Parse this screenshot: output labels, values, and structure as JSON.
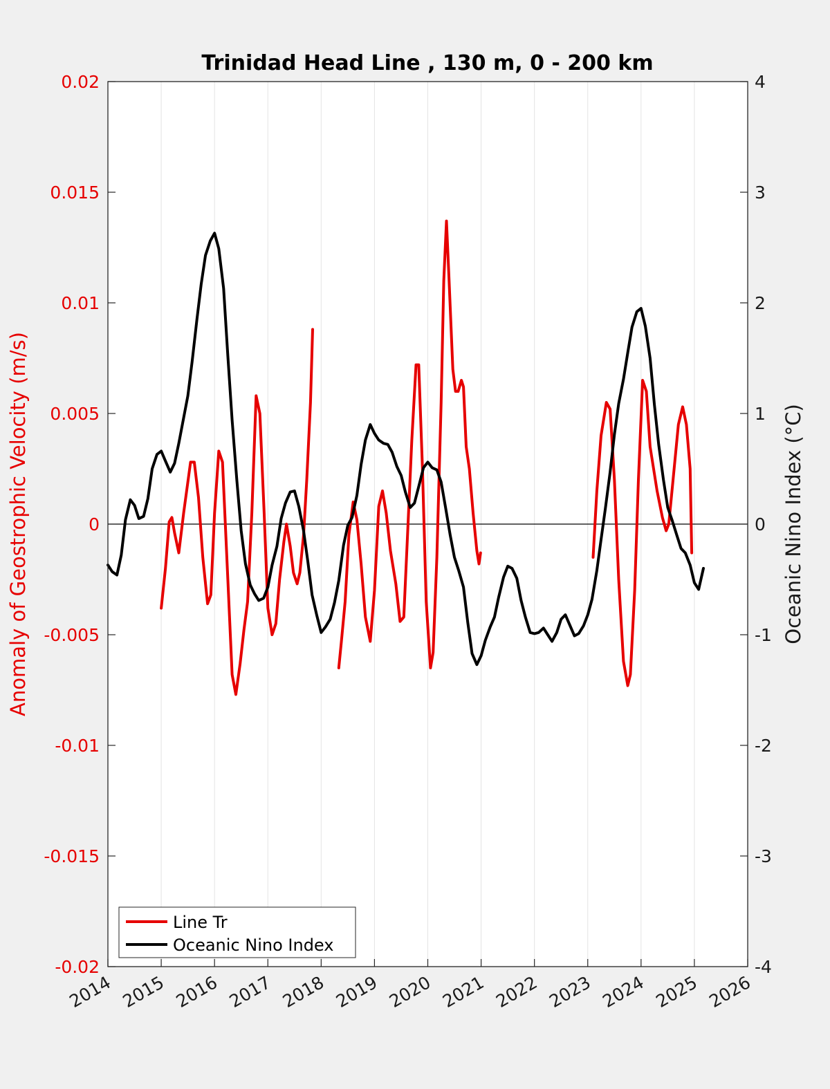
{
  "chart_data": {
    "type": "line",
    "title": "Trinidad Head Line , 130 m, 0 - 200 km",
    "xlabel": "",
    "ylabel_left": "Anomaly of Geostrophic Velocity (m/s)",
    "ylabel_right": "Oceanic Nino Index (°C)",
    "xlim": [
      2014,
      2026
    ],
    "ylim_left": [
      -0.02,
      0.02
    ],
    "ylim_right": [
      -4,
      4
    ],
    "x_ticks": [
      "2014",
      "2015",
      "2016",
      "2017",
      "2018",
      "2019",
      "2020",
      "2021",
      "2022",
      "2023",
      "2024",
      "2025",
      "2026"
    ],
    "y_left_ticks": [
      "-0.02",
      "-0.015",
      "-0.01",
      "-0.005",
      "0",
      "0.005",
      "0.01",
      "0.015",
      "0.02"
    ],
    "y_right_ticks": [
      "-4",
      "-3",
      "-2",
      "-1",
      "0",
      "1",
      "2",
      "3",
      "4"
    ],
    "grid": "vertical",
    "legend_position": "bottom-left",
    "colors": {
      "line_tr": "#e60000",
      "oni": "#000000"
    },
    "series": [
      {
        "name": "Line Tr",
        "axis": "left",
        "segments": [
          [
            [
              2015.0,
              -0.0038
            ],
            [
              2015.08,
              -0.002
            ],
            [
              2015.15,
              0.0001
            ],
            [
              2015.2,
              0.0003
            ],
            [
              2015.25,
              -0.0004
            ],
            [
              2015.33,
              -0.0013
            ],
            [
              2015.42,
              0.0005
            ],
            [
              2015.55,
              0.0028
            ],
            [
              2015.62,
              0.0028
            ],
            [
              2015.7,
              0.0012
            ],
            [
              2015.78,
              -0.0015
            ],
            [
              2015.87,
              -0.0036
            ],
            [
              2015.93,
              -0.0032
            ],
            [
              2016.0,
              0.0005
            ],
            [
              2016.08,
              0.0033
            ],
            [
              2016.15,
              0.0028
            ],
            [
              2016.25,
              -0.0025
            ],
            [
              2016.33,
              -0.0068
            ],
            [
              2016.4,
              -0.0077
            ],
            [
              2016.48,
              -0.0063
            ],
            [
              2016.55,
              -0.0048
            ],
            [
              2016.62,
              -0.0035
            ],
            [
              2016.7,
              0.0005
            ],
            [
              2016.78,
              0.0058
            ],
            [
              2016.85,
              0.005
            ],
            [
              2016.93,
              0.0005
            ],
            [
              2017.0,
              -0.0038
            ],
            [
              2017.08,
              -0.005
            ],
            [
              2017.15,
              -0.0045
            ],
            [
              2017.22,
              -0.0025
            ],
            [
              2017.3,
              -0.0008
            ],
            [
              2017.35,
              0.0
            ],
            [
              2017.42,
              -0.001
            ],
            [
              2017.48,
              -0.0022
            ],
            [
              2017.55,
              -0.0027
            ],
            [
              2017.6,
              -0.0022
            ],
            [
              2017.67,
              -0.0005
            ],
            [
              2017.73,
              0.002
            ],
            [
              2017.8,
              0.0055
            ],
            [
              2017.84,
              0.0088
            ]
          ],
          [
            [
              2018.33,
              -0.0065
            ],
            [
              2018.38,
              -0.0053
            ],
            [
              2018.45,
              -0.0035
            ],
            [
              2018.52,
              -0.0005
            ],
            [
              2018.6,
              0.001
            ],
            [
              2018.67,
              0.0002
            ],
            [
              2018.75,
              -0.0018
            ],
            [
              2018.83,
              -0.0042
            ],
            [
              2018.92,
              -0.0053
            ],
            [
              2019.0,
              -0.003
            ],
            [
              2019.08,
              0.0008
            ],
            [
              2019.15,
              0.0015
            ],
            [
              2019.22,
              0.0005
            ],
            [
              2019.3,
              -0.0012
            ],
            [
              2019.4,
              -0.0027
            ],
            [
              2019.48,
              -0.0044
            ],
            [
              2019.55,
              -0.0042
            ],
            [
              2019.62,
              -0.0005
            ],
            [
              2019.7,
              0.0038
            ],
            [
              2019.78,
              0.0072
            ],
            [
              2019.83,
              0.0072
            ],
            [
              2019.9,
              0.0025
            ],
            [
              2019.97,
              -0.0035
            ],
            [
              2020.05,
              -0.0065
            ],
            [
              2020.1,
              -0.0058
            ],
            [
              2020.17,
              -0.0015
            ],
            [
              2020.25,
              0.0055
            ],
            [
              2020.3,
              0.011
            ],
            [
              2020.35,
              0.0137
            ],
            [
              2020.4,
              0.011
            ],
            [
              2020.47,
              0.007
            ],
            [
              2020.52,
              0.006
            ],
            [
              2020.57,
              0.006
            ],
            [
              2020.63,
              0.0065
            ],
            [
              2020.67,
              0.0062
            ],
            [
              2020.72,
              0.0035
            ],
            [
              2020.78,
              0.0025
            ],
            [
              2020.85,
              0.0005
            ],
            [
              2020.92,
              -0.0012
            ],
            [
              2020.96,
              -0.0018
            ],
            [
              2020.99,
              -0.0013
            ]
          ],
          [
            [
              2023.1,
              -0.0015
            ],
            [
              2023.17,
              0.0015
            ],
            [
              2023.25,
              0.004
            ],
            [
              2023.35,
              0.0055
            ],
            [
              2023.42,
              0.0052
            ],
            [
              2023.5,
              0.002
            ],
            [
              2023.58,
              -0.0025
            ],
            [
              2023.67,
              -0.0062
            ],
            [
              2023.75,
              -0.0073
            ],
            [
              2023.8,
              -0.0068
            ],
            [
              2023.88,
              -0.003
            ],
            [
              2023.95,
              0.002
            ],
            [
              2024.03,
              0.0065
            ],
            [
              2024.1,
              0.006
            ],
            [
              2024.17,
              0.0035
            ],
            [
              2024.3,
              0.0015
            ],
            [
              2024.4,
              0.0003
            ],
            [
              2024.47,
              -0.0003
            ],
            [
              2024.52,
              0.0
            ],
            [
              2024.6,
              0.002
            ],
            [
              2024.7,
              0.0045
            ],
            [
              2024.78,
              0.0053
            ],
            [
              2024.85,
              0.0045
            ],
            [
              2024.92,
              0.0025
            ],
            [
              2024.95,
              -0.0013
            ]
          ]
        ]
      },
      {
        "name": "Oceanic Nino Index",
        "axis": "right",
        "points": [
          [
            2014.0,
            -0.37
          ],
          [
            2014.08,
            -0.43
          ],
          [
            2014.17,
            -0.46
          ],
          [
            2014.25,
            -0.28
          ],
          [
            2014.33,
            0.04
          ],
          [
            2014.42,
            0.22
          ],
          [
            2014.5,
            0.17
          ],
          [
            2014.58,
            0.05
          ],
          [
            2014.67,
            0.07
          ],
          [
            2014.75,
            0.23
          ],
          [
            2014.83,
            0.5
          ],
          [
            2014.92,
            0.63
          ],
          [
            2015.0,
            0.66
          ],
          [
            2015.08,
            0.57
          ],
          [
            2015.17,
            0.47
          ],
          [
            2015.25,
            0.55
          ],
          [
            2015.33,
            0.73
          ],
          [
            2015.42,
            0.96
          ],
          [
            2015.5,
            1.16
          ],
          [
            2015.58,
            1.47
          ],
          [
            2015.67,
            1.85
          ],
          [
            2015.75,
            2.17
          ],
          [
            2015.83,
            2.43
          ],
          [
            2015.92,
            2.56
          ],
          [
            2016.0,
            2.63
          ],
          [
            2016.08,
            2.49
          ],
          [
            2016.17,
            2.13
          ],
          [
            2016.25,
            1.52
          ],
          [
            2016.33,
            0.94
          ],
          [
            2016.42,
            0.39
          ],
          [
            2016.5,
            -0.06
          ],
          [
            2016.58,
            -0.36
          ],
          [
            2016.67,
            -0.55
          ],
          [
            2016.75,
            -0.63
          ],
          [
            2016.83,
            -0.69
          ],
          [
            2016.92,
            -0.67
          ],
          [
            2017.0,
            -0.57
          ],
          [
            2017.08,
            -0.37
          ],
          [
            2017.17,
            -0.2
          ],
          [
            2017.25,
            0.05
          ],
          [
            2017.33,
            0.19
          ],
          [
            2017.42,
            0.29
          ],
          [
            2017.5,
            0.3
          ],
          [
            2017.58,
            0.16
          ],
          [
            2017.67,
            -0.06
          ],
          [
            2017.75,
            -0.34
          ],
          [
            2017.83,
            -0.64
          ],
          [
            2017.92,
            -0.83
          ],
          [
            2018.0,
            -0.98
          ],
          [
            2018.08,
            -0.93
          ],
          [
            2018.17,
            -0.86
          ],
          [
            2018.25,
            -0.71
          ],
          [
            2018.33,
            -0.51
          ],
          [
            2018.42,
            -0.19
          ],
          [
            2018.5,
            -0.01
          ],
          [
            2018.58,
            0.06
          ],
          [
            2018.67,
            0.26
          ],
          [
            2018.75,
            0.54
          ],
          [
            2018.83,
            0.76
          ],
          [
            2018.92,
            0.9
          ],
          [
            2019.0,
            0.82
          ],
          [
            2019.08,
            0.76
          ],
          [
            2019.17,
            0.73
          ],
          [
            2019.25,
            0.72
          ],
          [
            2019.33,
            0.65
          ],
          [
            2019.42,
            0.52
          ],
          [
            2019.5,
            0.44
          ],
          [
            2019.58,
            0.29
          ],
          [
            2019.67,
            0.15
          ],
          [
            2019.75,
            0.19
          ],
          [
            2019.83,
            0.34
          ],
          [
            2019.92,
            0.51
          ],
          [
            2020.0,
            0.56
          ],
          [
            2020.08,
            0.51
          ],
          [
            2020.17,
            0.49
          ],
          [
            2020.25,
            0.38
          ],
          [
            2020.33,
            0.16
          ],
          [
            2020.42,
            -0.1
          ],
          [
            2020.5,
            -0.3
          ],
          [
            2020.58,
            -0.42
          ],
          [
            2020.67,
            -0.57
          ],
          [
            2020.75,
            -0.89
          ],
          [
            2020.83,
            -1.17
          ],
          [
            2020.92,
            -1.27
          ],
          [
            2021.0,
            -1.19
          ],
          [
            2021.08,
            -1.05
          ],
          [
            2021.17,
            -0.93
          ],
          [
            2021.25,
            -0.84
          ],
          [
            2021.33,
            -0.66
          ],
          [
            2021.42,
            -0.48
          ],
          [
            2021.5,
            -0.38
          ],
          [
            2021.58,
            -0.4
          ],
          [
            2021.67,
            -0.49
          ],
          [
            2021.75,
            -0.69
          ],
          [
            2021.83,
            -0.84
          ],
          [
            2021.92,
            -0.98
          ],
          [
            2022.0,
            -0.99
          ],
          [
            2022.08,
            -0.98
          ],
          [
            2022.17,
            -0.94
          ],
          [
            2022.25,
            -1.0
          ],
          [
            2022.33,
            -1.06
          ],
          [
            2022.42,
            -0.98
          ],
          [
            2022.5,
            -0.86
          ],
          [
            2022.58,
            -0.82
          ],
          [
            2022.67,
            -0.92
          ],
          [
            2022.75,
            -1.01
          ],
          [
            2022.83,
            -0.99
          ],
          [
            2022.92,
            -0.92
          ],
          [
            2023.0,
            -0.82
          ],
          [
            2023.08,
            -0.68
          ],
          [
            2023.17,
            -0.42
          ],
          [
            2023.25,
            -0.14
          ],
          [
            2023.33,
            0.14
          ],
          [
            2023.42,
            0.47
          ],
          [
            2023.5,
            0.81
          ],
          [
            2023.58,
            1.09
          ],
          [
            2023.67,
            1.31
          ],
          [
            2023.75,
            1.55
          ],
          [
            2023.83,
            1.78
          ],
          [
            2023.92,
            1.92
          ],
          [
            2024.0,
            1.95
          ],
          [
            2024.08,
            1.79
          ],
          [
            2024.17,
            1.5
          ],
          [
            2024.25,
            1.08
          ],
          [
            2024.33,
            0.72
          ],
          [
            2024.42,
            0.4
          ],
          [
            2024.5,
            0.15
          ],
          [
            2024.58,
            0.04
          ],
          [
            2024.67,
            -0.1
          ],
          [
            2024.75,
            -0.22
          ],
          [
            2024.83,
            -0.26
          ],
          [
            2024.92,
            -0.37
          ],
          [
            2025.0,
            -0.53
          ],
          [
            2025.08,
            -0.59
          ],
          [
            2025.17,
            -0.4
          ]
        ]
      }
    ]
  }
}
